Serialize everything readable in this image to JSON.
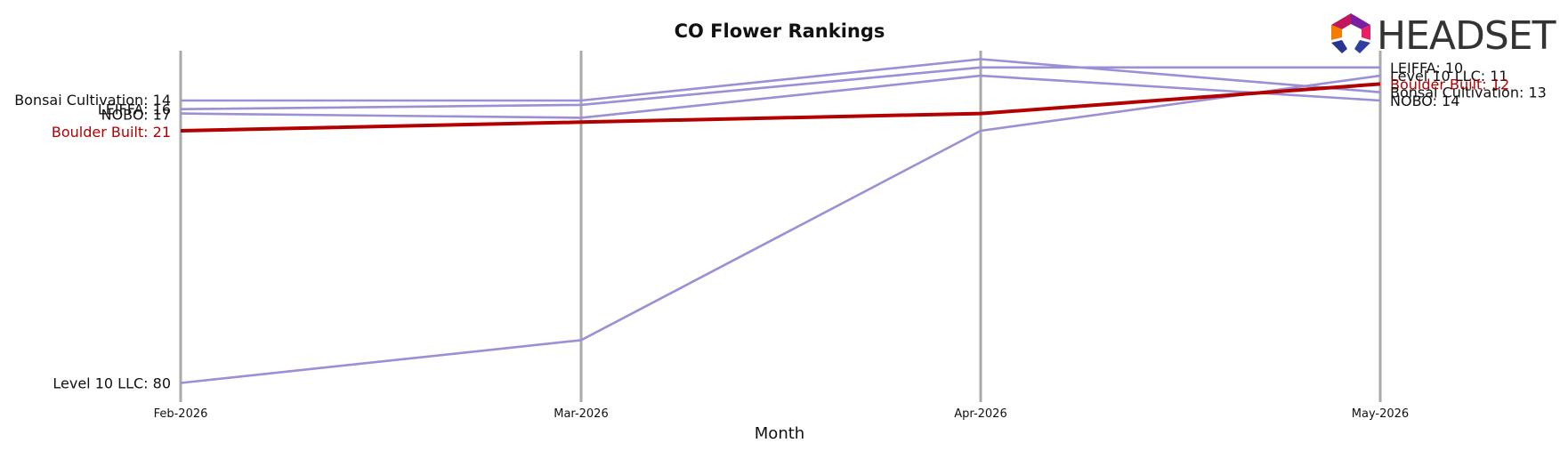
{
  "chart_data": {
    "type": "line",
    "title": "CO Flower Rankings",
    "xlabel": "Month",
    "ylabel": "",
    "categories": [
      "Feb-2026",
      "Mar-2026",
      "Apr-2026",
      "May-2026"
    ],
    "y_inverted": true,
    "grid": "vertical lines at each month",
    "series": [
      {
        "name": "Bonsai Cultivation",
        "values": [
          14,
          14,
          9,
          13
        ],
        "highlight": false
      },
      {
        "name": "LEIFFA",
        "values": [
          16,
          15,
          10,
          10
        ],
        "highlight": false
      },
      {
        "name": "NOBO",
        "values": [
          17,
          18,
          11,
          14
        ],
        "highlight": false
      },
      {
        "name": "Boulder Built",
        "values": [
          21,
          19,
          17,
          12
        ],
        "highlight": true
      },
      {
        "name": "Level 10 LLC",
        "values": [
          80,
          70,
          21,
          11
        ],
        "highlight": false
      }
    ],
    "left_labels": [
      "Bonsai Cultivation: 14",
      "LEIFFA: 16",
      "NOBO: 17",
      "Boulder Built: 21",
      "Level 10 LLC: 80"
    ],
    "right_labels": [
      "LEIFFA: 10",
      "Level 10 LLC: 11",
      "Boulder Built: 12",
      "Bonsai Cultivation: 13",
      "NOBO: 14"
    ],
    "colors": {
      "series": "#9b8fd6",
      "highlight": "#b30000",
      "gridline": "#aaaaaa"
    }
  },
  "logo": {
    "text": "HEADSET"
  }
}
